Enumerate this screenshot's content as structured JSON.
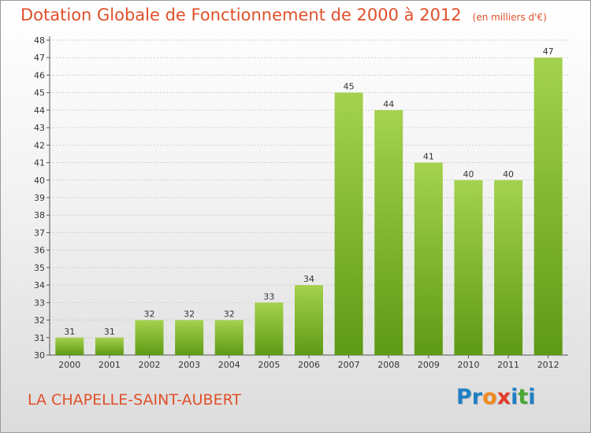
{
  "header": {
    "title": "Dotation Globale de Fonctionnement de 2000 à 2012",
    "subtitle": "(en milliers d'€)"
  },
  "commune": "LA CHAPELLE-SAINT-AUBERT",
  "logo": {
    "text": "Proxiti",
    "letters": [
      "P",
      "r",
      "o",
      "x",
      "i",
      "t",
      "i"
    ],
    "letter_colors": [
      "#1f7fc4",
      "#1f7fc4",
      "#f08a1c",
      "#e53a2a",
      "#1f7fc4",
      "#48a832",
      "#1f7fc4"
    ]
  },
  "colors": {
    "title": "#e0502a",
    "bar_light": "#a4d24e",
    "bar_dark": "#5e9a15",
    "grid": "#cfcfcf"
  },
  "chart_data": {
    "type": "bar",
    "title": "Dotation Globale de Fonctionnement de 2000 à 2012",
    "subtitle": "(en milliers d'€)",
    "categories": [
      "2000",
      "2001",
      "2002",
      "2003",
      "2004",
      "2005",
      "2006",
      "2007",
      "2008",
      "2009",
      "2010",
      "2011",
      "2012"
    ],
    "values": [
      31,
      31,
      32,
      32,
      32,
      33,
      34,
      45,
      44,
      41,
      40,
      40,
      47
    ],
    "ylim": [
      30,
      48
    ],
    "yticks": [
      30,
      31,
      32,
      33,
      34,
      35,
      36,
      37,
      38,
      39,
      40,
      41,
      42,
      43,
      44,
      45,
      46,
      47,
      48
    ],
    "grid": true,
    "xlabel": "",
    "ylabel": ""
  }
}
